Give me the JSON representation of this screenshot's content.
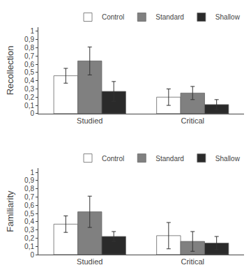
{
  "chart_data": [
    {
      "type": "bar",
      "categories": [
        "Studied",
        "Critical"
      ],
      "ylabel": "Recollection",
      "series": [
        {
          "name": "Control",
          "color": "white",
          "values": [
            0.46,
            0.2
          ],
          "errors": [
            0.09,
            0.1
          ]
        },
        {
          "name": "Standard",
          "color": "#808080",
          "values": [
            0.64,
            0.25
          ],
          "errors": [
            0.17,
            0.08
          ]
        },
        {
          "name": "Shallow",
          "color": "#2a2a2a",
          "values": [
            0.27,
            0.11
          ],
          "errors": [
            0.12,
            0.06
          ]
        }
      ],
      "ylim": [
        0,
        1.05
      ],
      "yticks": [
        0,
        {
          "value": 0.1,
          "label": "0,1"
        },
        {
          "value": 0.2,
          "label": "0,2"
        },
        {
          "value": 0.3,
          "label": "0,3"
        },
        {
          "value": 0.4,
          "label": "0,4"
        },
        {
          "value": 0.5,
          "label": "0,5"
        },
        {
          "value": 0.6,
          "label": "0,6"
        },
        {
          "value": 0.7,
          "label": "0,7"
        },
        {
          "value": 0.8,
          "label": "0,8"
        },
        {
          "value": 0.9,
          "label": "0,9"
        },
        1
      ],
      "grid": false,
      "legend": "upper right"
    },
    {
      "type": "bar",
      "categories": [
        "Studied",
        "Critical"
      ],
      "ylabel": "Familiarity",
      "series": [
        {
          "name": "Control",
          "color": "white",
          "values": [
            0.37,
            0.23
          ],
          "errors": [
            0.1,
            0.16
          ]
        },
        {
          "name": "Standard",
          "color": "#808080",
          "values": [
            0.52,
            0.16
          ],
          "errors": [
            0.19,
            0.12
          ]
        },
        {
          "name": "Shallow",
          "color": "#2a2a2a",
          "values": [
            0.22,
            0.14
          ],
          "errors": [
            0.06,
            0.08
          ]
        }
      ],
      "ylim": [
        0,
        1.05
      ],
      "yticks": [
        0,
        {
          "value": 0.1,
          "label": "0,1"
        },
        {
          "value": 0.2,
          "label": "0,2"
        },
        {
          "value": 0.3,
          "label": "0,3"
        },
        {
          "value": 0.4,
          "label": "0,4"
        },
        {
          "value": 0.5,
          "label": "0,5"
        },
        {
          "value": 0.6,
          "label": "0,6"
        },
        {
          "value": 0.7,
          "label": "0,7"
        },
        {
          "value": 0.8,
          "label": "0,8"
        },
        {
          "value": 0.9,
          "label": "0,9"
        },
        1
      ],
      "grid": false,
      "legend": "upper right"
    }
  ]
}
